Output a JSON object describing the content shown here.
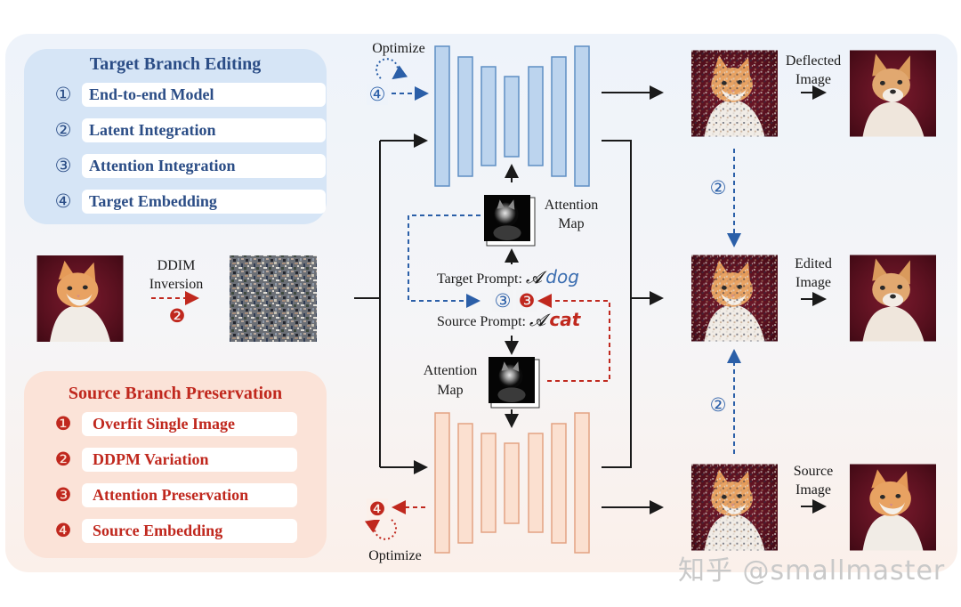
{
  "target_panel": {
    "title": "Target Branch Editing",
    "items": [
      {
        "num": "①",
        "label": "End-to-end Model"
      },
      {
        "num": "②",
        "label": "Latent Integration"
      },
      {
        "num": "③",
        "label": "Attention Integration"
      },
      {
        "num": "④",
        "label": "Target Embedding"
      }
    ]
  },
  "source_panel": {
    "title": "Source Branch Preservation",
    "items": [
      {
        "num": "❶",
        "label": "Overfit Single Image"
      },
      {
        "num": "❷",
        "label": "DDPM Variation"
      },
      {
        "num": "❸",
        "label": "Attention Preservation"
      },
      {
        "num": "❹",
        "label": "Source Embedding"
      }
    ]
  },
  "labels": {
    "optimize_top": "Optimize",
    "optimize_bottom": "Optimize",
    "ddim_line1": "DDIM",
    "ddim_line2": "Inversion",
    "attention_map_top_line1": "Attention",
    "attention_map_top_line2": "Map",
    "attention_map_bottom_line1": "Attention",
    "attention_map_bottom_line2": "Map",
    "target_prompt": "Target Prompt:",
    "source_prompt": "Source Prompt:",
    "prompt_article": "𝓐",
    "target_word": "dog",
    "source_word": "cat",
    "deflected_line1": "Deflected",
    "deflected_line2": "Image",
    "edited_line1": "Edited",
    "edited_line2": "Image",
    "source_line1": "Source",
    "source_line2": "Image"
  },
  "markers": {
    "opt_top": "④",
    "opt_bottom": "❹",
    "ddim": "❷",
    "attn_blue": "③",
    "attn_red": "❸",
    "latent_top": "②",
    "latent_bottom": "②"
  },
  "watermark": "知乎 @smallmaster",
  "colors": {
    "blue": "#2b4d86",
    "red": "#c0281e",
    "unet_blue_fill": "#bcd4ee",
    "unet_blue_stroke": "#5f8fc4",
    "unet_orange_fill": "#fbe0d0",
    "unet_orange_stroke": "#e3a383"
  }
}
